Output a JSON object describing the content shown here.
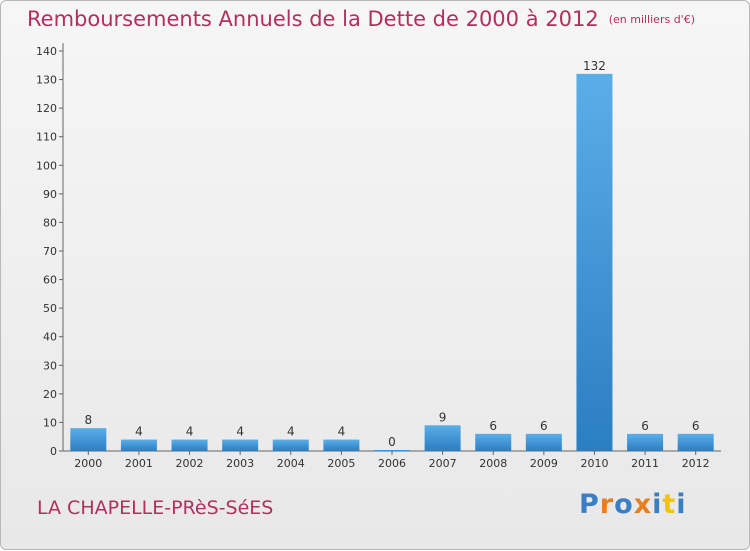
{
  "header": {
    "title": "Remboursements Annuels de la Dette de 2000 à 2012",
    "unit_note": "(en milliers d'€)"
  },
  "footer": {
    "town": "LA CHAPELLE-PRèS-SéES",
    "logo": "Proxiti"
  },
  "colors": {
    "title": "#b03060",
    "bar_light": "#5aaee8",
    "bar_dark": "#2a7ec2",
    "logo_letters": [
      "#3a7fc4",
      "#e67e22",
      "#3a7fc4",
      "#e67e22",
      "#3a7fc4",
      "#f1c40f",
      "#3a7fc4"
    ]
  },
  "chart_data": {
    "type": "bar",
    "categories": [
      "2000",
      "2001",
      "2002",
      "2003",
      "2004",
      "2005",
      "2006",
      "2007",
      "2008",
      "2009",
      "2010",
      "2011",
      "2012"
    ],
    "values": [
      8,
      4,
      4,
      4,
      4,
      4,
      0,
      9,
      6,
      6,
      132,
      6,
      6
    ],
    "data_labels": [
      "8",
      "4",
      "4",
      "4",
      "4",
      "4",
      "0",
      "9",
      "6",
      "6",
      "132",
      "6",
      "6"
    ],
    "ylim": [
      0,
      140
    ],
    "yticks": [
      0,
      10,
      20,
      30,
      40,
      50,
      60,
      70,
      80,
      90,
      100,
      110,
      120,
      130,
      140
    ],
    "grid": false
  }
}
